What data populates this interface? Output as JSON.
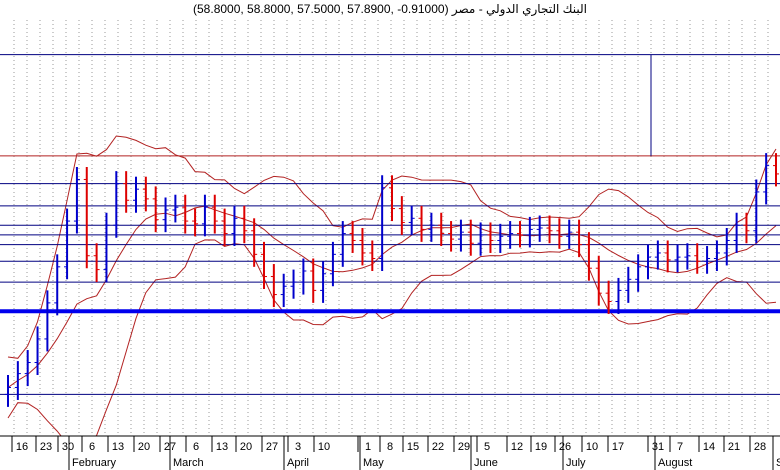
{
  "chart_data": {
    "type": "ohlc",
    "title": "(58.8000, 58.8000, 57.5000, 57.8900, -0.91000) البنك التجاري الدولي - مصر",
    "xlabel": "",
    "ylabel": "",
    "grid": "vertical-dotted",
    "legend": "none",
    "day_ticks": [
      "16",
      "23",
      "30",
      "6",
      "13",
      "20",
      "27",
      "6",
      "13",
      "20",
      "27",
      "3",
      "10",
      "1",
      "8",
      "15",
      "22",
      "29",
      "5",
      "12",
      "19",
      "26",
      "10",
      "17",
      "31",
      "7",
      "14",
      "21",
      "28"
    ],
    "months": [
      "February",
      "March",
      "April",
      "May",
      "June",
      "July",
      "August",
      "S"
    ],
    "colors": {
      "up_bar": "#0000cc",
      "down_bar": "#dd0000",
      "bollinger_band": "#b22222",
      "horizontal_lines": "#000080",
      "thick_support_line": "#0000ee",
      "grid": "#9a9a9a"
    },
    "ylim": [
      39.0,
      69.0
    ],
    "support_level": 48.0,
    "horizontal_levels": [
      66.5,
      57.2,
      55.6,
      54.2,
      53.5,
      52.8,
      51.6,
      50.1,
      42.0
    ],
    "resistance_level": 59.2,
    "close_series": [
      42.5,
      43.5,
      44.3,
      46.0,
      48.6,
      51.2,
      54.5,
      57.5,
      52.0,
      51.0,
      54.2,
      57.2,
      56.0,
      56.8,
      56.1,
      54.6,
      55.3,
      55.5,
      54.5,
      54.3,
      55.5,
      54.5,
      53.6,
      54.7,
      53.8,
      52.1,
      50.5,
      49.2,
      49.8,
      50.1,
      50.9,
      49.5,
      50.7,
      52.1,
      53.6,
      53.1,
      52.2,
      51.8,
      56.9,
      55.4,
      54.4,
      54.7,
      53.9,
      54.2,
      53.6,
      53.2,
      53.7,
      52.9,
      53.5,
      53.1,
      53.4,
      53.6,
      53.5,
      53.9,
      54.0,
      53.8,
      53.4,
      53.7,
      52.8,
      51.1,
      49.3,
      48.7,
      49.5,
      50.3,
      51.2,
      51.9,
      52.2,
      51.7,
      51.9,
      52.0,
      51.6,
      51.8,
      52.2,
      53.1,
      54.2,
      53.8,
      56.6,
      58.5,
      57.9
    ]
  }
}
